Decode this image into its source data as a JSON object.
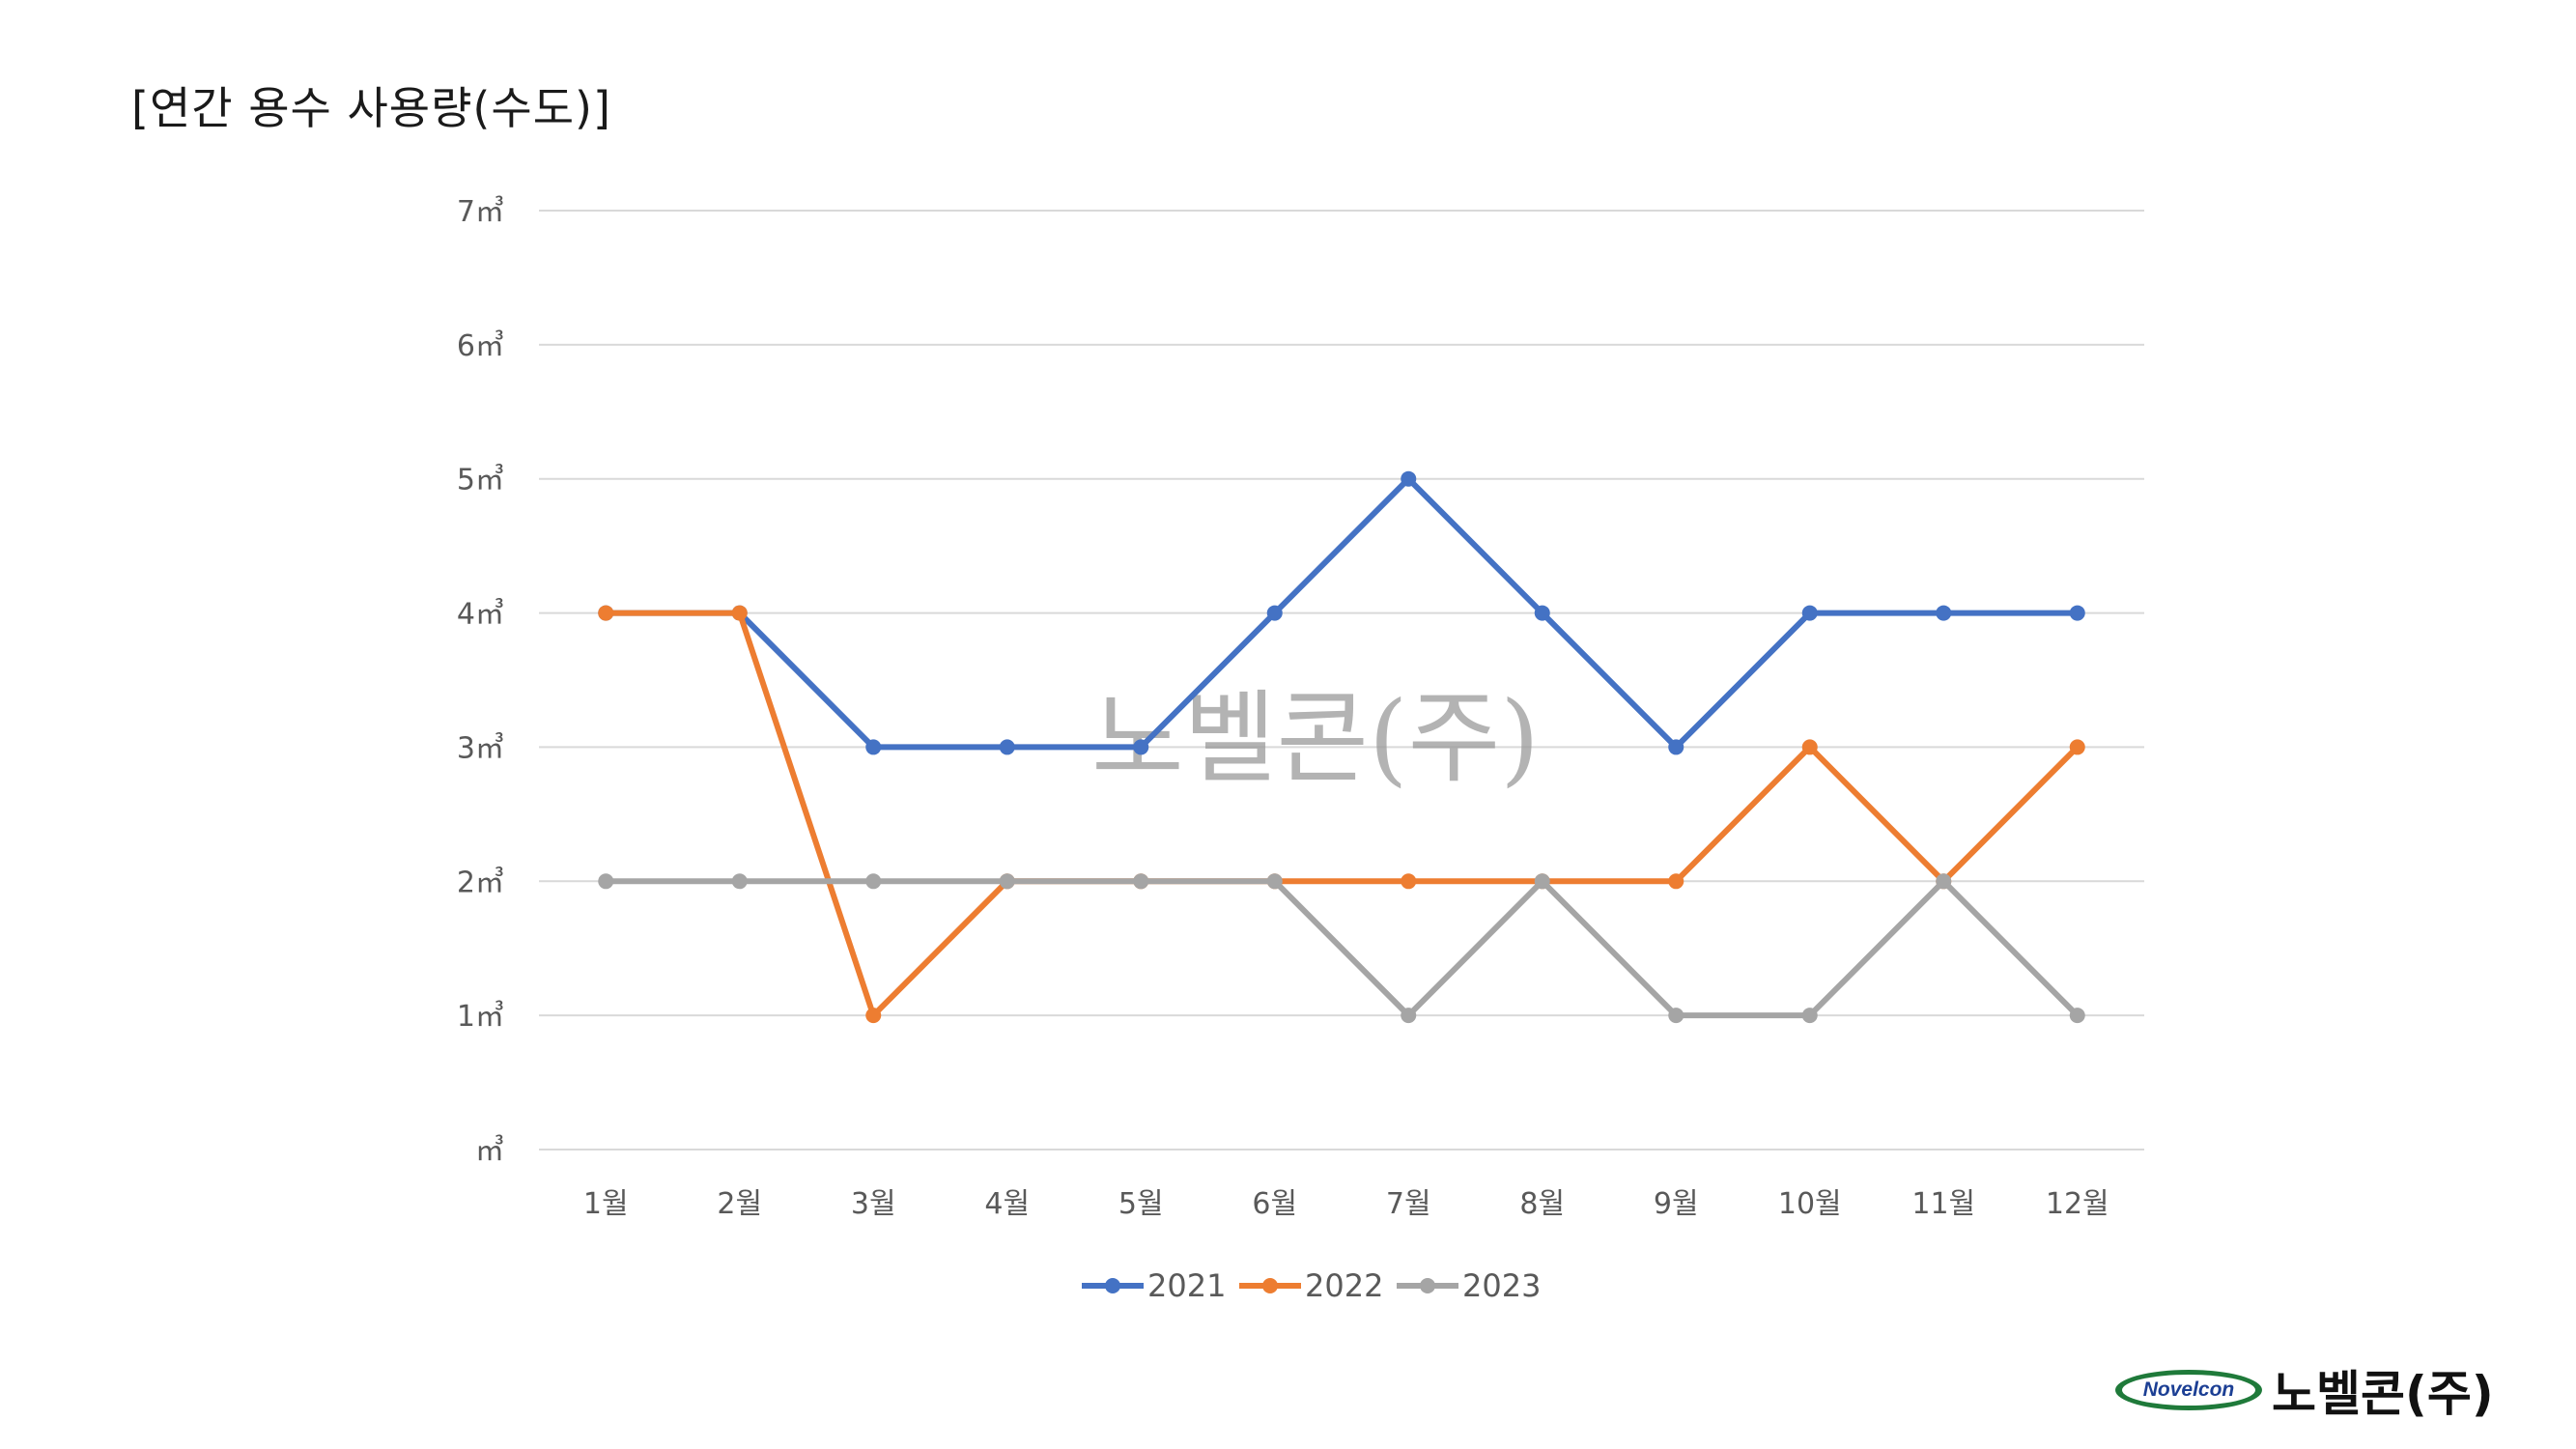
{
  "page": {
    "title": "[연간 용수 사용량(수도)]"
  },
  "watermark": "노벨콘(주)",
  "logo": {
    "badge": "Novelcon",
    "name": "노벨콘(주)"
  },
  "chart_data": {
    "type": "line",
    "categories": [
      "1월",
      "2월",
      "3월",
      "4월",
      "5월",
      "6월",
      "7월",
      "8월",
      "9월",
      "10월",
      "11월",
      "12월"
    ],
    "y_tick_labels": [
      "㎥",
      "1㎥",
      "2㎥",
      "3㎥",
      "4㎥",
      "5㎥",
      "6㎥",
      "7㎥"
    ],
    "ylim": [
      0,
      7
    ],
    "grid": true,
    "legend_position": "bottom",
    "series": [
      {
        "name": "2021",
        "color": "#4472c4",
        "values": [
          4,
          4,
          3,
          3,
          3,
          4,
          5,
          4,
          3,
          4,
          4,
          4
        ]
      },
      {
        "name": "2022",
        "color": "#ed7d31",
        "values": [
          4,
          4,
          1,
          2,
          2,
          2,
          2,
          2,
          2,
          3,
          2,
          3
        ]
      },
      {
        "name": "2023",
        "color": "#a5a5a5",
        "values": [
          2,
          2,
          2,
          2,
          2,
          2,
          1,
          2,
          1,
          1,
          2,
          1
        ]
      }
    ]
  }
}
